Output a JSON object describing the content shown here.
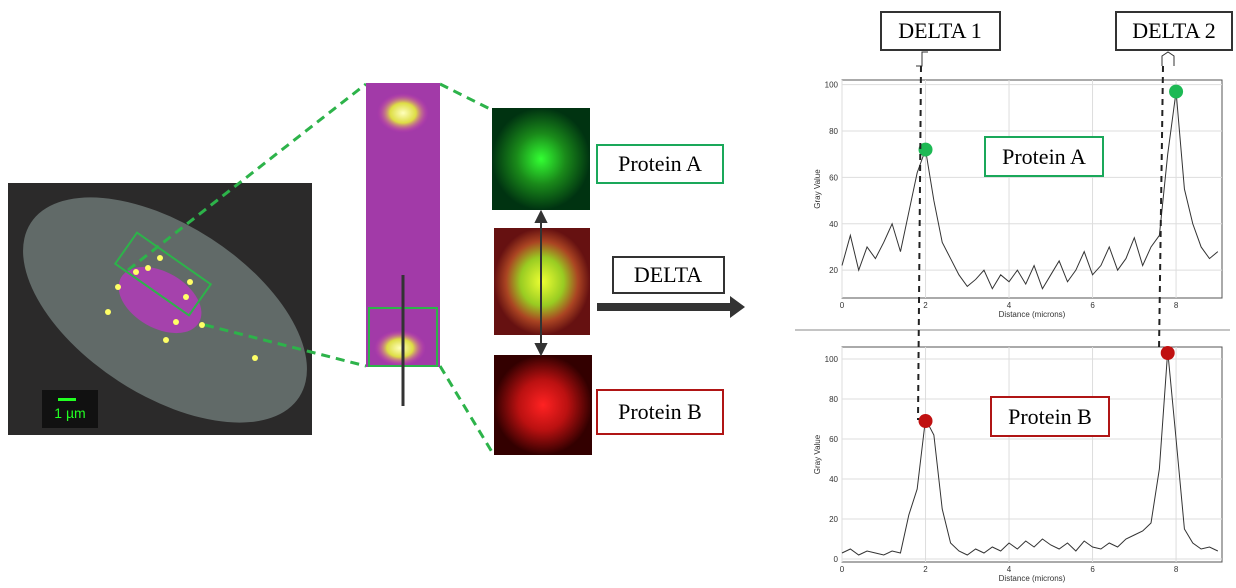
{
  "figure": {
    "delta1": "DELTA 1",
    "delta2": "DELTA 2",
    "delta": "DELTA",
    "protein_a": "Protein A",
    "protein_b": "Protein B",
    "scale_bar": "1 µm"
  },
  "chart_data": [
    {
      "type": "line",
      "annotation": "Protein A",
      "annotation_color": "#1aa85a",
      "xlabel": "Distance (microns)",
      "ylabel": "Gray Value",
      "xlim": [
        0,
        9.1
      ],
      "ylim": [
        8,
        102
      ],
      "xticks": [
        0,
        2,
        4,
        6,
        8
      ],
      "yticks": [
        20,
        40,
        60,
        80,
        100
      ],
      "grid": true,
      "series": [
        {
          "color": "#333333",
          "x": [
            0,
            0.2,
            0.4,
            0.6,
            0.8,
            1,
            1.2,
            1.4,
            1.6,
            1.8,
            2,
            2.2,
            2.4,
            2.6,
            2.8,
            3,
            3.2,
            3.4,
            3.6,
            3.8,
            4,
            4.2,
            4.4,
            4.6,
            4.8,
            5,
            5.2,
            5.4,
            5.6,
            5.8,
            6,
            6.2,
            6.4,
            6.6,
            6.8,
            7,
            7.2,
            7.4,
            7.6,
            7.8,
            8,
            8.2,
            8.4,
            8.6,
            8.8,
            9
          ],
          "values": [
            22,
            35,
            20,
            30,
            25,
            32,
            40,
            28,
            45,
            62,
            72,
            50,
            32,
            25,
            18,
            13,
            16,
            20,
            12,
            18,
            15,
            20,
            14,
            22,
            12,
            18,
            24,
            15,
            20,
            28,
            18,
            22,
            30,
            20,
            25,
            34,
            22,
            30,
            35,
            70,
            97,
            55,
            40,
            30,
            25,
            28
          ]
        }
      ],
      "markers": {
        "color": "#1db954",
        "x": [
          2,
          8
        ],
        "y": [
          72,
          97
        ]
      }
    },
    {
      "type": "line",
      "annotation": "Protein B",
      "annotation_color": "#b01515",
      "xlabel": "Distance (microns)",
      "ylabel": "Gray Value",
      "xlim": [
        0,
        9.1
      ],
      "ylim": [
        -1.5,
        106
      ],
      "xticks": [
        0,
        2,
        4,
        6,
        8
      ],
      "yticks": [
        0,
        20,
        40,
        60,
        80,
        100
      ],
      "grid": true,
      "series": [
        {
          "color": "#333333",
          "x": [
            0,
            0.2,
            0.4,
            0.6,
            0.8,
            1,
            1.2,
            1.4,
            1.6,
            1.8,
            2,
            2.2,
            2.4,
            2.6,
            2.8,
            3,
            3.2,
            3.4,
            3.6,
            3.8,
            4,
            4.2,
            4.4,
            4.6,
            4.8,
            5,
            5.2,
            5.4,
            5.6,
            5.8,
            6,
            6.2,
            6.4,
            6.6,
            6.8,
            7,
            7.2,
            7.4,
            7.6,
            7.8,
            8,
            8.2,
            8.4,
            8.6,
            8.8,
            9
          ],
          "values": [
            3,
            5,
            2,
            4,
            3,
            2,
            4,
            3,
            22,
            35,
            70,
            62,
            25,
            8,
            4,
            2,
            5,
            3,
            6,
            4,
            8,
            5,
            9,
            6,
            10,
            7,
            5,
            8,
            4,
            9,
            6,
            5,
            8,
            6,
            10,
            12,
            14,
            18,
            45,
            104,
            60,
            15,
            8,
            5,
            6,
            4
          ]
        }
      ],
      "markers": {
        "color": "#c01010",
        "x": [
          2,
          7.8
        ],
        "y": [
          69,
          103
        ]
      }
    }
  ]
}
